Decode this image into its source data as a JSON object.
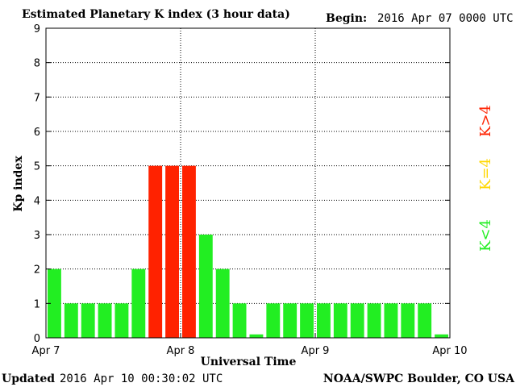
{
  "header": {
    "title": "Estimated Planetary K index (3 hour data)",
    "begin_label": "Begin:",
    "begin_value": "2016 Apr 07 0000 UTC"
  },
  "footer": {
    "updated_label": "Updated",
    "updated_value": "2016 Apr 10 00:30:02 UTC",
    "source": "NOAA/SWPC Boulder, CO USA"
  },
  "legend": {
    "high": "K>4",
    "mid": "K=4",
    "low": "K<4"
  },
  "colors": {
    "low": "#22ee22",
    "mid": "#ffd700",
    "high": "#ff2200"
  },
  "chart_data": {
    "type": "bar",
    "title": "Estimated Planetary K index (3 hour data)",
    "xlabel": "Universal Time",
    "ylabel": "Kp index",
    "ylim": [
      0,
      9
    ],
    "yticks": [
      0,
      1,
      2,
      3,
      4,
      5,
      6,
      7,
      8,
      9
    ],
    "xticks": [
      "Apr 7",
      "Apr 8",
      "Apr 9",
      "Apr 10"
    ],
    "grid": true,
    "interval_hours": 3,
    "values": [
      2,
      1,
      1,
      1,
      1,
      2,
      5,
      5,
      5,
      3,
      2,
      1,
      0.1,
      1,
      1,
      1,
      1,
      1,
      1,
      1,
      1,
      1,
      1,
      0.1
    ]
  }
}
